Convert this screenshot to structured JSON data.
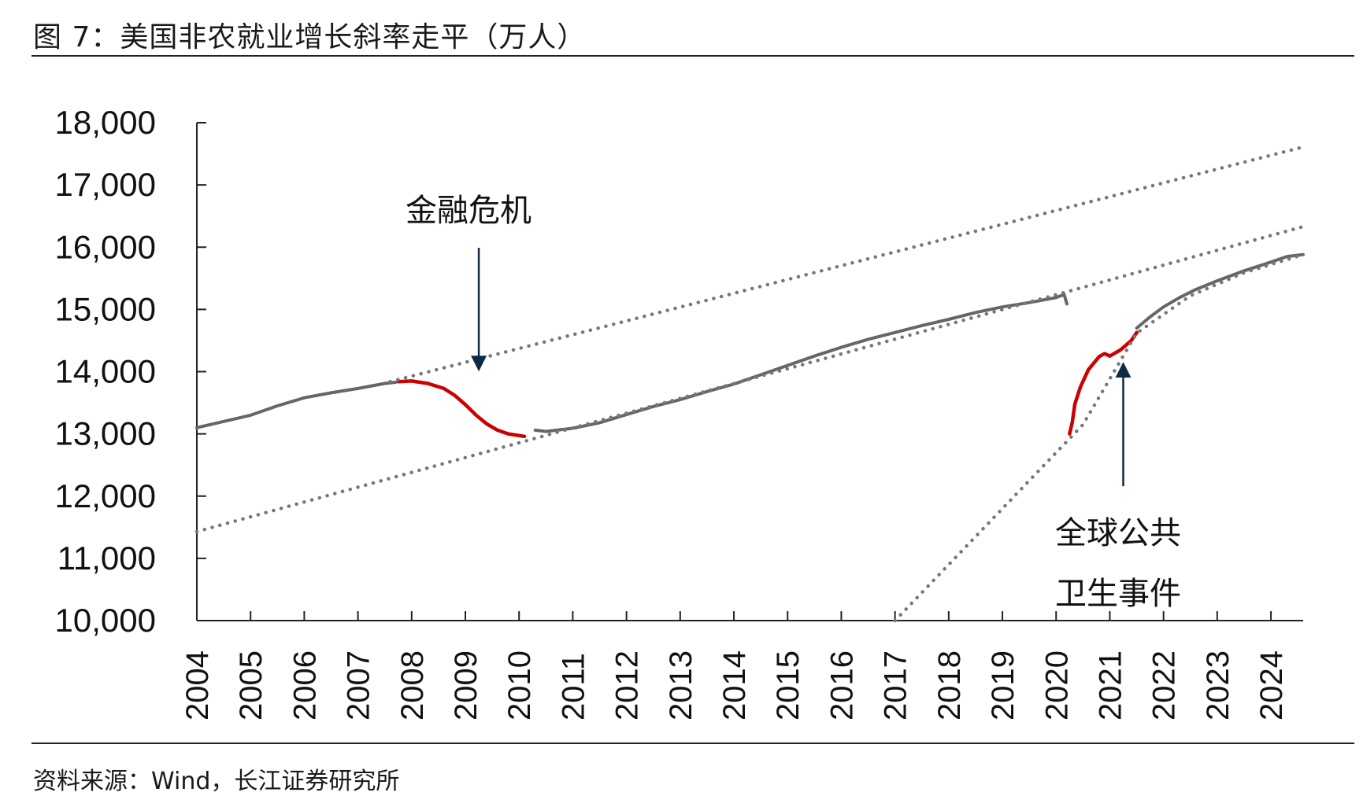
{
  "header": {
    "figure_title": "图 7：美国非农就业增长斜率走平（万人）"
  },
  "footer": {
    "source": "资料来源：Wind，长江证券研究所"
  },
  "chart_data": {
    "type": "line",
    "title": "图 7：美国非农就业增长斜率走平（万人）",
    "xlabel": "",
    "ylabel": "",
    "xlim": [
      2004,
      2024.6
    ],
    "ylim": [
      10000,
      18000
    ],
    "y_ticks": [
      10000,
      11000,
      12000,
      13000,
      14000,
      15000,
      16000,
      17000,
      18000
    ],
    "y_tick_labels": [
      "10,000",
      "11,000",
      "12,000",
      "13,000",
      "14,000",
      "15,000",
      "16,000",
      "17,000",
      "18,000"
    ],
    "x_ticks": [
      2004,
      2005,
      2006,
      2007,
      2008,
      2009,
      2010,
      2011,
      2012,
      2013,
      2014,
      2015,
      2016,
      2017,
      2018,
      2019,
      2020,
      2021,
      2022,
      2023,
      2024
    ],
    "x_tick_labels": [
      "2004",
      "2005",
      "2006",
      "2007",
      "2008",
      "2009",
      "2010",
      "2011",
      "2012",
      "2013",
      "2014",
      "2015",
      "2016",
      "2017",
      "2018",
      "2019",
      "2020",
      "2021",
      "2022",
      "2023",
      "2024"
    ],
    "grid": false,
    "legend": "none",
    "series": [
      {
        "color": "#666666",
        "style": "solid",
        "x": [
          2004.0,
          2004.5,
          2005.0,
          2005.5,
          2006.0,
          2006.5,
          2007.0,
          2007.5,
          2007.7
        ],
        "y": [
          13100,
          13200,
          13300,
          13450,
          13580,
          13660,
          13730,
          13810,
          13830
        ]
      },
      {
        "color": "#cc0000",
        "style": "solid",
        "x": [
          2007.75,
          2008.0,
          2008.3,
          2008.6,
          2008.8,
          2009.0,
          2009.2,
          2009.4,
          2009.6,
          2009.8,
          2010.1
        ],
        "y": [
          13840,
          13850,
          13810,
          13730,
          13620,
          13470,
          13300,
          13160,
          13060,
          13000,
          12960
        ]
      },
      {
        "color": "#666666",
        "style": "solid",
        "x": [
          2010.3,
          2010.5,
          2011.0,
          2011.5,
          2012.0,
          2012.5,
          2013.0,
          2013.5,
          2014.0,
          2014.5,
          2015.0,
          2015.5,
          2016.0,
          2016.5,
          2017.0,
          2017.5,
          2018.0,
          2018.5,
          2019.0,
          2019.5,
          2020.0,
          2020.15,
          2020.2
        ],
        "y": [
          13060,
          13040,
          13090,
          13180,
          13310,
          13440,
          13550,
          13680,
          13800,
          13950,
          14100,
          14250,
          14390,
          14520,
          14630,
          14740,
          14840,
          14950,
          15040,
          15110,
          15190,
          15240,
          15090
        ]
      },
      {
        "color": "#cc0000",
        "style": "solid",
        "x": [
          2020.25,
          2020.3,
          2020.35,
          2020.45,
          2020.6,
          2020.8,
          2020.9,
          2021.0,
          2021.2,
          2021.4,
          2021.5
        ],
        "y": [
          13000,
          13180,
          13480,
          13750,
          14030,
          14240,
          14290,
          14250,
          14350,
          14500,
          14630
        ]
      },
      {
        "color": "#666666",
        "style": "solid",
        "x": [
          2021.5,
          2021.75,
          2022.0,
          2022.3,
          2022.6,
          2023.0,
          2023.5,
          2024.0,
          2024.3,
          2024.6
        ],
        "y": [
          14700,
          14880,
          15040,
          15190,
          15320,
          15460,
          15620,
          15760,
          15850,
          15880
        ]
      },
      {
        "color": "#777777",
        "style": "dotted",
        "x": [
          2007.6,
          2024.6
        ],
        "y": [
          13840,
          17610
        ]
      },
      {
        "color": "#777777",
        "style": "dotted",
        "x": [
          2004.0,
          2024.6
        ],
        "y": [
          11430,
          16330
        ]
      },
      {
        "color": "#777777",
        "style": "dotted",
        "x": [
          2017.0,
          2020.5,
          2021.5,
          2022.5,
          2023.5,
          2024.6
        ],
        "y": [
          10000,
          13150,
          14620,
          15220,
          15590,
          15880
        ]
      }
    ],
    "annotations": [
      {
        "text": "金融危机",
        "arrow": "down",
        "x": 2009.25,
        "y": 14130,
        "arrow_from_y": 15990
      },
      {
        "text": "全球公共",
        "arrow": "none"
      },
      {
        "text": "卫生事件",
        "arrow": "none"
      },
      {
        "arrow": "up",
        "x": 2021.25,
        "y": 14030,
        "arrow_from_y": 12160
      }
    ]
  }
}
